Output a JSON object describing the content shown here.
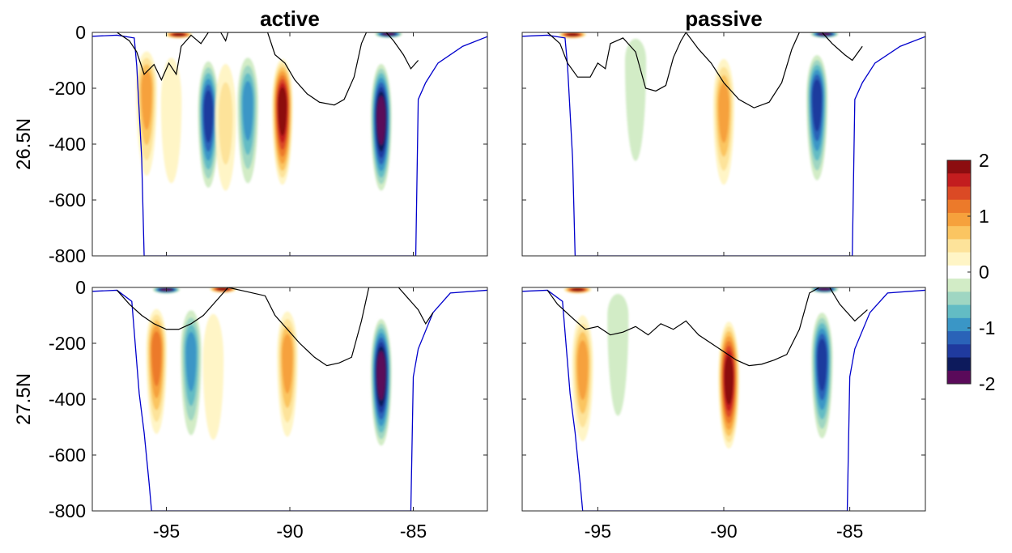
{
  "chart_data": {
    "type": "heatmap",
    "layout": "2 rows x 2 columns of filled-contour depth sections",
    "column_titles": [
      "active",
      "passive"
    ],
    "row_labels": [
      "26.5N",
      "27.5N"
    ],
    "x_ticks": [
      -95,
      -90,
      -85
    ],
    "x_tick_labels": [
      "-95",
      "-90",
      "-85"
    ],
    "xlim": [
      -98,
      -82
    ],
    "y_ticks": [
      0,
      -200,
      -400,
      -600,
      -800
    ],
    "y_tick_labels": [
      "0",
      "-200",
      "-400",
      "-600",
      "-800"
    ],
    "ylim": [
      -800,
      0
    ],
    "colorbar": {
      "range": [
        -2,
        2
      ],
      "levels": [
        -2,
        -1.75,
        -1.5,
        -1.25,
        -1,
        -0.75,
        -0.5,
        -0.25,
        0,
        0.25,
        0.5,
        0.75,
        1,
        1.25,
        1.5,
        1.75,
        2
      ],
      "ticks": [
        2,
        1,
        0,
        -1,
        -2
      ],
      "tick_labels": [
        "2",
        "1",
        "0",
        "-1",
        "-2"
      ],
      "colors": [
        "#5a0a5a",
        "#0d1a5c",
        "#1f3a9e",
        "#2a63b8",
        "#3a96c6",
        "#63bcc4",
        "#9fd6c2",
        "#d2ecc6",
        "#ffffff",
        "#fff5c6",
        "#fde39a",
        "#fbc561",
        "#f6a13c",
        "#ec7a2a",
        "#db4a25",
        "#c31d1f",
        "#8c0d10"
      ]
    },
    "bottom_line_color": "#0000cc",
    "mixed_layer_line_color": "#000000",
    "panels": [
      {
        "name": "26.5N active",
        "bottom_depth": [
          [
            -98,
            -14
          ],
          [
            -97,
            -10
          ],
          [
            -96.3,
            -20
          ],
          [
            -96.2,
            -120
          ],
          [
            -96.0,
            -450
          ],
          [
            -95.9,
            -800
          ],
          [
            -84.9,
            -800
          ],
          [
            -84.8,
            -240
          ],
          [
            -84.5,
            -180
          ],
          [
            -84.0,
            -110
          ],
          [
            -83.0,
            -50
          ],
          [
            -82,
            -15
          ]
        ],
        "mixed_layer_depth": [
          [
            -97,
            0
          ],
          [
            -96.5,
            -30
          ],
          [
            -96.2,
            -70
          ],
          [
            -95.9,
            -150
          ],
          [
            -95.5,
            -115
          ],
          [
            -95.2,
            -170
          ],
          [
            -94.9,
            -110
          ],
          [
            -94.6,
            -150
          ],
          [
            -94.4,
            -50
          ],
          [
            -94.0,
            -10
          ],
          [
            -93.6,
            -40
          ],
          [
            -93.3,
            0
          ],
          [
            -92.8,
            0
          ],
          [
            -92.6,
            -30
          ],
          [
            -92.5,
            0
          ],
          [
            -90.9,
            0
          ],
          [
            -90.6,
            -80
          ],
          [
            -90.2,
            -110
          ],
          [
            -89.8,
            -170
          ],
          [
            -89.3,
            -220
          ],
          [
            -88.8,
            -250
          ],
          [
            -88.2,
            -260
          ],
          [
            -87.8,
            -240
          ],
          [
            -87.4,
            -160
          ],
          [
            -87.1,
            -40
          ],
          [
            -86.9,
            0
          ],
          [
            -86.1,
            0
          ],
          [
            -85.8,
            -30
          ],
          [
            -85.4,
            -80
          ],
          [
            -85.1,
            -130
          ],
          [
            -84.8,
            -100
          ]
        ],
        "features": [
          {
            "x": -95.8,
            "depth": -200,
            "value": 1.0
          },
          {
            "x": -94.8,
            "depth": -250,
            "value": 0.3
          },
          {
            "x": -93.3,
            "depth": -280,
            "value": -1.6
          },
          {
            "x": -92.6,
            "depth": -300,
            "value": 0.5
          },
          {
            "x": -91.7,
            "depth": -250,
            "value": -0.9
          },
          {
            "x": -90.3,
            "depth": -260,
            "value": 1.9
          },
          {
            "x": -86.3,
            "depth": -300,
            "value": -1.9
          },
          {
            "x": -94.5,
            "depth": -8,
            "value": 2.0
          },
          {
            "x": -86.0,
            "depth": -6,
            "value": -2.0
          }
        ]
      },
      {
        "name": "26.5N passive",
        "bottom_depth": [
          [
            -98,
            -14
          ],
          [
            -97,
            -10
          ],
          [
            -96.3,
            -20
          ],
          [
            -96.2,
            -120
          ],
          [
            -96.0,
            -450
          ],
          [
            -95.9,
            -800
          ],
          [
            -84.9,
            -800
          ],
          [
            -84.8,
            -240
          ],
          [
            -84.5,
            -180
          ],
          [
            -84.0,
            -110
          ],
          [
            -83.0,
            -50
          ],
          [
            -82,
            -15
          ]
        ],
        "mixed_layer_depth": [
          [
            -97,
            0
          ],
          [
            -96.5,
            -40
          ],
          [
            -96.2,
            -110
          ],
          [
            -95.8,
            -160
          ],
          [
            -95.3,
            -160
          ],
          [
            -95.0,
            -110
          ],
          [
            -94.7,
            -130
          ],
          [
            -94.5,
            -40
          ],
          [
            -94.0,
            -20
          ],
          [
            -93.5,
            -70
          ],
          [
            -93.1,
            -200
          ],
          [
            -92.7,
            -210
          ],
          [
            -92.3,
            -190
          ],
          [
            -92.0,
            -90
          ],
          [
            -91.7,
            -30
          ],
          [
            -91.5,
            0
          ],
          [
            -91.0,
            -60
          ],
          [
            -90.5,
            -110
          ],
          [
            -90.0,
            -180
          ],
          [
            -89.4,
            -240
          ],
          [
            -88.8,
            -270
          ],
          [
            -88.2,
            -250
          ],
          [
            -87.7,
            -180
          ],
          [
            -87.3,
            -60
          ],
          [
            -87.0,
            0
          ],
          [
            -86.1,
            0
          ],
          [
            -85.7,
            -40
          ],
          [
            -85.2,
            -80
          ],
          [
            -84.9,
            -100
          ],
          [
            -84.5,
            -50
          ]
        ],
        "features": [
          {
            "x": -90.0,
            "depth": -260,
            "value": 0.9
          },
          {
            "x": -86.3,
            "depth": -230,
            "value": -1.4
          },
          {
            "x": -93.5,
            "depth": -100,
            "value": -0.2
          },
          {
            "x": -96.0,
            "depth": -8,
            "value": 2.0
          },
          {
            "x": -86.0,
            "depth": -6,
            "value": -2.0
          }
        ]
      },
      {
        "name": "27.5N active",
        "bottom_depth": [
          [
            -98,
            -14
          ],
          [
            -97,
            -10
          ],
          [
            -96.4,
            -50
          ],
          [
            -96.3,
            -160
          ],
          [
            -96.1,
            -380
          ],
          [
            -95.9,
            -520
          ],
          [
            -95.7,
            -700
          ],
          [
            -95.6,
            -800
          ],
          [
            -85.1,
            -800
          ],
          [
            -85.0,
            -320
          ],
          [
            -84.8,
            -220
          ],
          [
            -84.2,
            -90
          ],
          [
            -83.5,
            -20
          ],
          [
            -82,
            -10
          ]
        ],
        "mixed_layer_depth": [
          [
            -97,
            -10
          ],
          [
            -96.5,
            -60
          ],
          [
            -96.0,
            -100
          ],
          [
            -95.5,
            -130
          ],
          [
            -95.0,
            -150
          ],
          [
            -94.5,
            -150
          ],
          [
            -94.0,
            -130
          ],
          [
            -93.5,
            -100
          ],
          [
            -93.0,
            -50
          ],
          [
            -92.5,
            0
          ],
          [
            -91.0,
            -30
          ],
          [
            -90.6,
            -100
          ],
          [
            -90.2,
            -140
          ],
          [
            -89.6,
            -200
          ],
          [
            -89.0,
            -250
          ],
          [
            -88.5,
            -280
          ],
          [
            -88.0,
            -270
          ],
          [
            -87.5,
            -250
          ],
          [
            -87.1,
            -120
          ],
          [
            -86.8,
            0
          ],
          [
            -85.6,
            0
          ],
          [
            -85.2,
            -40
          ],
          [
            -84.8,
            -80
          ],
          [
            -84.5,
            -130
          ],
          [
            -84.2,
            -90
          ]
        ],
        "features": [
          {
            "x": -95.4,
            "depth": -220,
            "value": 1.2
          },
          {
            "x": -94.0,
            "depth": -230,
            "value": -1.0
          },
          {
            "x": -93.1,
            "depth": -260,
            "value": 0.3
          },
          {
            "x": -90.1,
            "depth": -240,
            "value": 1.1
          },
          {
            "x": -86.3,
            "depth": -300,
            "value": -2.0
          },
          {
            "x": -95.0,
            "depth": -8,
            "value": -2.0
          },
          {
            "x": -92.7,
            "depth": -6,
            "value": 2.0
          }
        ]
      },
      {
        "name": "27.5N passive",
        "bottom_depth": [
          [
            -98,
            -14
          ],
          [
            -97,
            -10
          ],
          [
            -96.4,
            -50
          ],
          [
            -96.3,
            -160
          ],
          [
            -96.1,
            -380
          ],
          [
            -95.9,
            -520
          ],
          [
            -95.7,
            -700
          ],
          [
            -95.6,
            -800
          ],
          [
            -85.1,
            -800
          ],
          [
            -85.0,
            -320
          ],
          [
            -84.8,
            -220
          ],
          [
            -84.2,
            -90
          ],
          [
            -83.5,
            -20
          ],
          [
            -82,
            -10
          ]
        ],
        "mixed_layer_depth": [
          [
            -97,
            -10
          ],
          [
            -96.6,
            -60
          ],
          [
            -96.0,
            -110
          ],
          [
            -95.5,
            -150
          ],
          [
            -95.0,
            -140
          ],
          [
            -94.5,
            -170
          ],
          [
            -94.0,
            -160
          ],
          [
            -93.5,
            -140
          ],
          [
            -93.0,
            -170
          ],
          [
            -92.5,
            -130
          ],
          [
            -92.0,
            -150
          ],
          [
            -91.5,
            -120
          ],
          [
            -91.0,
            -170
          ],
          [
            -90.5,
            -200
          ],
          [
            -90.0,
            -230
          ],
          [
            -89.5,
            -260
          ],
          [
            -89.0,
            -280
          ],
          [
            -88.5,
            -275
          ],
          [
            -88.0,
            -260
          ],
          [
            -87.5,
            -240
          ],
          [
            -87.0,
            -150
          ],
          [
            -86.6,
            -20
          ],
          [
            -86.2,
            0
          ],
          [
            -85.8,
            0
          ],
          [
            -85.4,
            -60
          ],
          [
            -84.8,
            -120
          ],
          [
            -84.3,
            -80
          ]
        ],
        "features": [
          {
            "x": -95.6,
            "depth": -270,
            "value": 0.9
          },
          {
            "x": -89.8,
            "depth": -320,
            "value": 1.9
          },
          {
            "x": -86.1,
            "depth": -250,
            "value": -1.4
          },
          {
            "x": -94.2,
            "depth": -100,
            "value": -0.2
          },
          {
            "x": -95.8,
            "depth": -8,
            "value": 2.0
          },
          {
            "x": -86.0,
            "depth": -6,
            "value": -2.0
          }
        ]
      }
    ]
  }
}
